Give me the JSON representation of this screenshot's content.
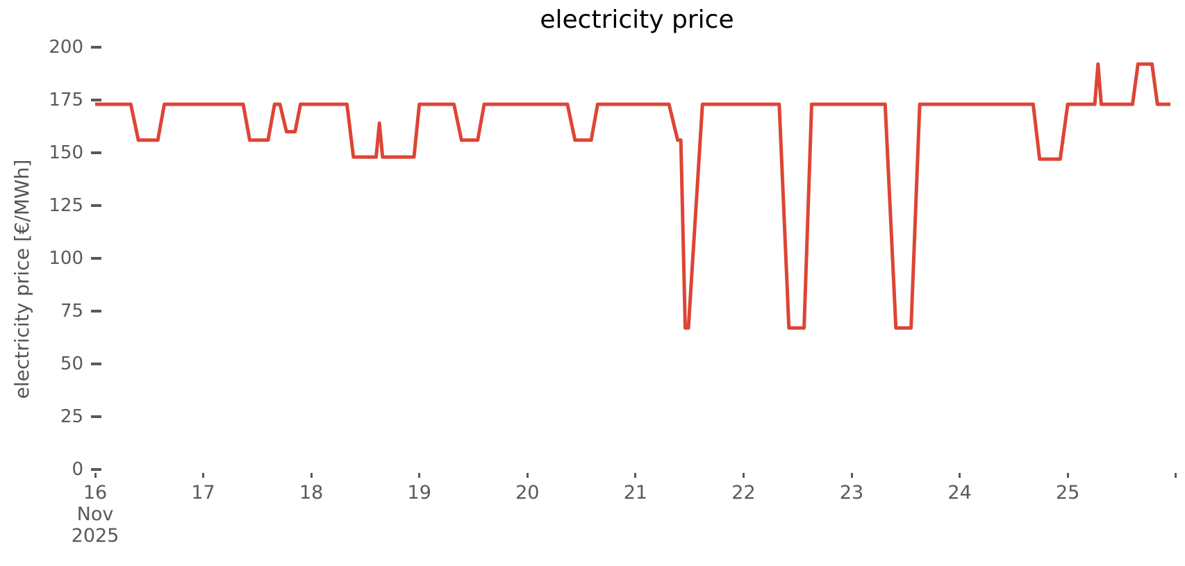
{
  "figure": {
    "background_color": "#ffffff"
  },
  "chart_data": {
    "type": "line",
    "title": "electricity price",
    "xlabel": "",
    "ylabel": "electricity price [€/MWh]",
    "x_unit": "day of month, November 2025",
    "y_unit": "€/MWh",
    "xlim": [
      16.0,
      26.085
    ],
    "ylim": [
      0,
      200
    ],
    "grid": false,
    "legend_position": "none",
    "line_color": "#dd4535",
    "line_width": 5,
    "axis_text_color": "#595959",
    "title_color": "#000000",
    "y_ticks": [
      {
        "value": 0,
        "label": "0"
      },
      {
        "value": 25,
        "label": "25"
      },
      {
        "value": 50,
        "label": "50"
      },
      {
        "value": 75,
        "label": "75"
      },
      {
        "value": 100,
        "label": "100"
      },
      {
        "value": 125,
        "label": "125"
      },
      {
        "value": 150,
        "label": "150"
      },
      {
        "value": 175,
        "label": "175"
      },
      {
        "value": 200,
        "label": "200"
      }
    ],
    "x_ticks": [
      {
        "day": 16,
        "label": "16",
        "sublabels": [
          "Nov",
          "2025"
        ]
      },
      {
        "day": 17,
        "label": "17",
        "sublabels": []
      },
      {
        "day": 18,
        "label": "18",
        "sublabels": []
      },
      {
        "day": 19,
        "label": "19",
        "sublabels": []
      },
      {
        "day": 20,
        "label": "20",
        "sublabels": []
      },
      {
        "day": 21,
        "label": "21",
        "sublabels": []
      },
      {
        "day": 22,
        "label": "22",
        "sublabels": []
      },
      {
        "day": 23,
        "label": "23",
        "sublabels": []
      },
      {
        "day": 24,
        "label": "24",
        "sublabels": []
      },
      {
        "day": 25,
        "label": "25",
        "sublabels": []
      },
      {
        "day": 26,
        "label": "",
        "sublabels": []
      }
    ],
    "series": [
      {
        "name": "electricity price",
        "points_format": "[day_of_november_decimal, price_eur_per_mwh]",
        "points": [
          [
            16.0,
            173
          ],
          [
            16.33,
            173
          ],
          [
            16.4,
            156
          ],
          [
            16.58,
            156
          ],
          [
            16.64,
            173
          ],
          [
            17.37,
            173
          ],
          [
            17.43,
            156
          ],
          [
            17.6,
            156
          ],
          [
            17.66,
            173
          ],
          [
            17.71,
            173
          ],
          [
            17.77,
            160
          ],
          [
            17.85,
            160
          ],
          [
            17.9,
            173
          ],
          [
            18.33,
            173
          ],
          [
            18.39,
            148
          ],
          [
            18.6,
            148
          ],
          [
            18.63,
            164
          ],
          [
            18.66,
            148
          ],
          [
            18.95,
            148
          ],
          [
            19.0,
            173
          ],
          [
            19.32,
            173
          ],
          [
            19.39,
            156
          ],
          [
            19.54,
            156
          ],
          [
            19.6,
            173
          ],
          [
            20.37,
            173
          ],
          [
            20.44,
            156
          ],
          [
            20.59,
            156
          ],
          [
            20.65,
            173
          ],
          [
            21.31,
            173
          ],
          [
            21.39,
            156
          ],
          [
            21.42,
            156
          ],
          [
            21.46,
            67
          ],
          [
            21.49,
            67
          ],
          [
            21.62,
            173
          ],
          [
            22.33,
            173
          ],
          [
            22.42,
            67
          ],
          [
            22.56,
            67
          ],
          [
            22.63,
            173
          ],
          [
            23.31,
            173
          ],
          [
            23.41,
            67
          ],
          [
            23.55,
            67
          ],
          [
            23.63,
            173
          ],
          [
            24.68,
            173
          ],
          [
            24.74,
            147
          ],
          [
            24.93,
            147
          ],
          [
            25.0,
            173
          ],
          [
            25.25,
            173
          ],
          [
            25.28,
            192
          ],
          [
            25.31,
            173
          ],
          [
            25.6,
            173
          ],
          [
            25.65,
            192
          ],
          [
            25.78,
            192
          ],
          [
            25.83,
            173
          ],
          [
            25.95,
            173
          ]
        ]
      }
    ]
  }
}
